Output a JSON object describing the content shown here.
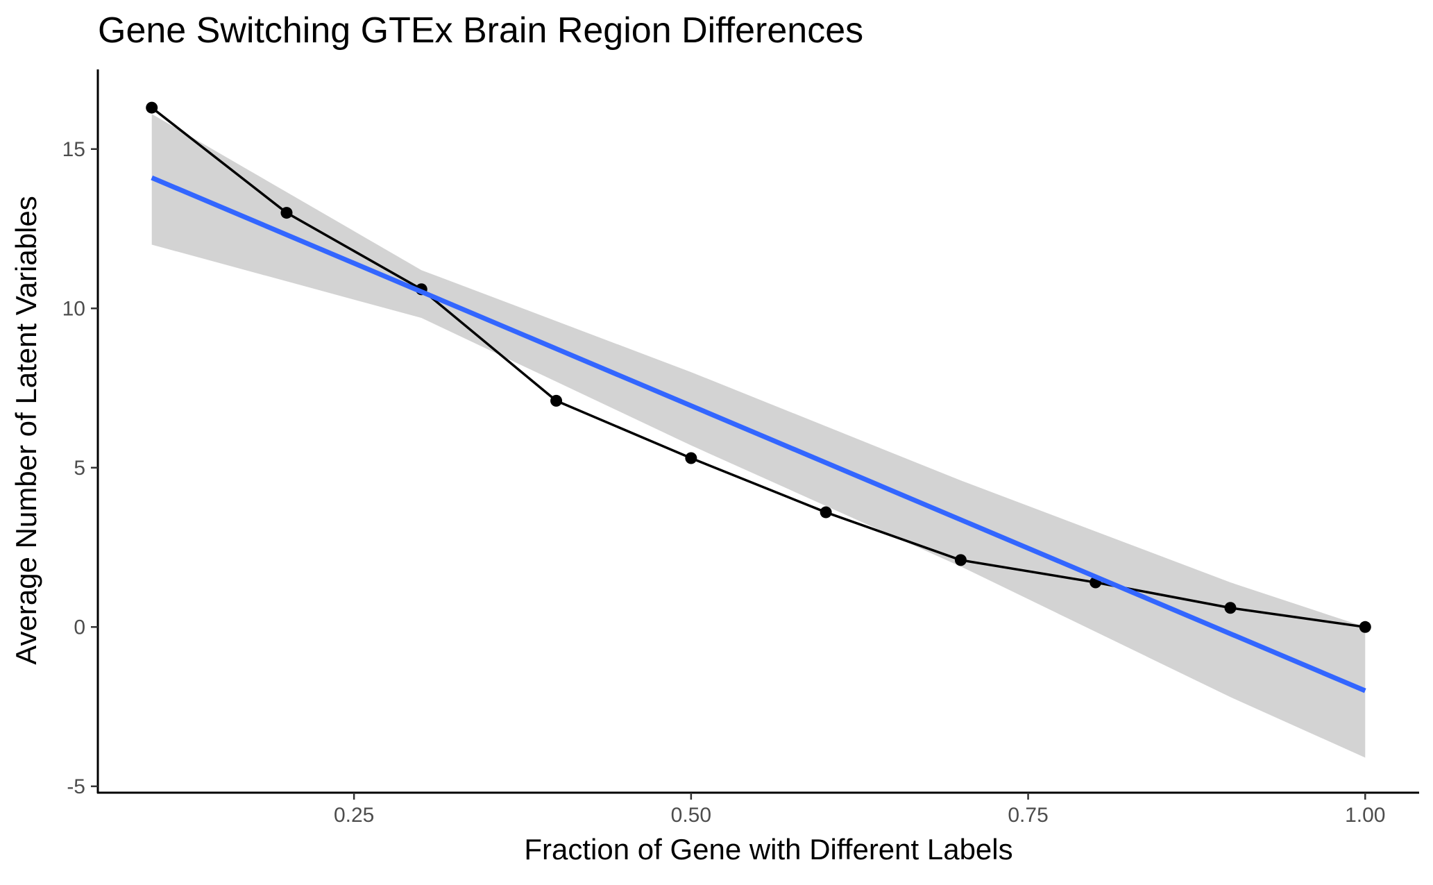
{
  "chart_data": {
    "type": "line",
    "title": "Gene Switching GTEx Brain Region Differences",
    "xlabel": "Fraction of Gene with Different Labels",
    "ylabel": "Average Number of Latent Variables",
    "xlim": [
      0.06,
      1.04
    ],
    "ylim": [
      -5.2,
      17.5
    ],
    "x_ticks": [
      0.25,
      0.5,
      0.75,
      1.0
    ],
    "x_tick_labels": [
      "0.25",
      "0.50",
      "0.75",
      "1.00"
    ],
    "y_ticks": [
      -5,
      0,
      5,
      10,
      15
    ],
    "y_tick_labels": [
      "-5",
      "0",
      "5",
      "10",
      "15"
    ],
    "grid": false,
    "series": [
      {
        "x": [
          0.1,
          0.2,
          0.3,
          0.4,
          0.5,
          0.6,
          0.7,
          0.8,
          0.9,
          1.0
        ],
        "y": [
          16.3,
          13.0,
          10.6,
          7.1,
          5.3,
          3.6,
          2.1,
          1.4,
          0.6,
          0.0
        ],
        "color": "#000000"
      }
    ],
    "fit": {
      "method": "linear",
      "x": [
        0.1,
        1.0
      ],
      "y": [
        14.1,
        -2.0
      ],
      "color": "#3366FF",
      "confidence_band": {
        "x": [
          0.1,
          0.3,
          0.5,
          0.7,
          0.9,
          1.0
        ],
        "lower": [
          12.0,
          9.7,
          5.7,
          1.9,
          -2.2,
          -4.1
        ],
        "upper": [
          16.1,
          11.2,
          8.0,
          4.6,
          1.4,
          0.0
        ],
        "color": "#d3d3d3"
      }
    }
  }
}
